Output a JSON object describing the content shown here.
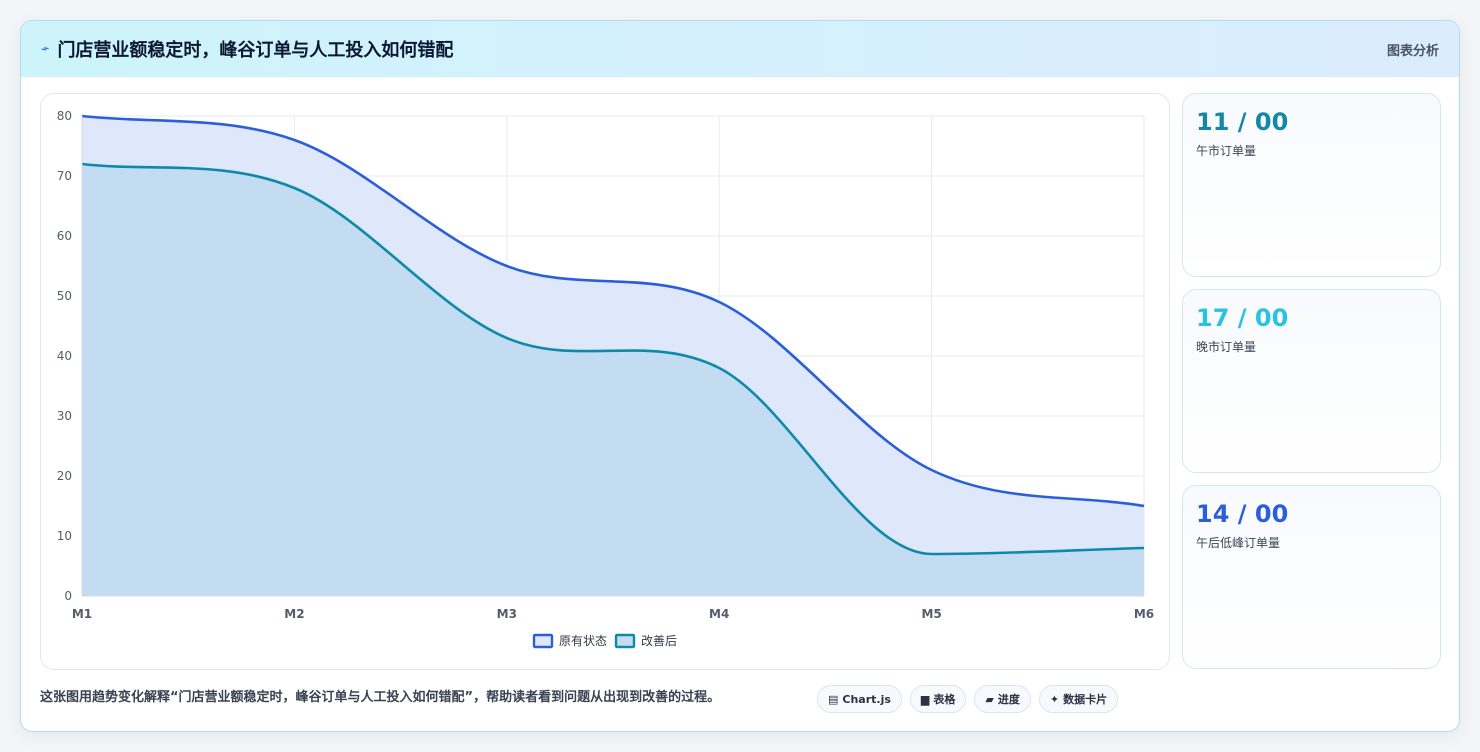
{
  "header": {
    "icon": "trend-icon",
    "title": "门店营业额稳定时，峰谷订单与人工投入如何错配",
    "right_label": "图表分析"
  },
  "chart_data": {
    "type": "area",
    "categories": [
      "M1",
      "M2",
      "M3",
      "M4",
      "M5",
      "M6"
    ],
    "ylim": [
      0,
      80
    ],
    "yticks": [
      0,
      10,
      20,
      30,
      40,
      50,
      60,
      70,
      80
    ],
    "grid": true,
    "legend_position": "bottom",
    "series": [
      {
        "name": "原有状态",
        "values": [
          80,
          76,
          55,
          49,
          21,
          15
        ],
        "color": "#2b5fd9",
        "fill": "#dfe8fb"
      },
      {
        "name": "改善后",
        "values": [
          72,
          68,
          43,
          38,
          7,
          8
        ],
        "color": "#0e8aa8",
        "fill": "#c3dcf1"
      }
    ]
  },
  "side_cards": [
    {
      "value": "11 / 00",
      "label": "午市订单量",
      "color": "#1288a5"
    },
    {
      "value": "17 / 00",
      "label": "晚市订单量",
      "color": "#2ac3df"
    },
    {
      "value": "14 / 00",
      "label": "午后低峰订单量",
      "color": "#2b5fd9"
    }
  ],
  "footer": {
    "text": "这张图用趋势变化解释“门店营业额稳定时，峰谷订单与人工投入如何错配”，帮助读者看到问题从出现到改善的过程。",
    "chips": [
      {
        "icon": "chart-icon",
        "glyph": "▤",
        "label": "Chart.js"
      },
      {
        "icon": "table-icon",
        "glyph": "▆",
        "label": "表格"
      },
      {
        "icon": "progress-icon",
        "glyph": "▰",
        "label": "进度"
      },
      {
        "icon": "sparkle-icon",
        "glyph": "✦",
        "label": "数据卡片"
      }
    ]
  }
}
